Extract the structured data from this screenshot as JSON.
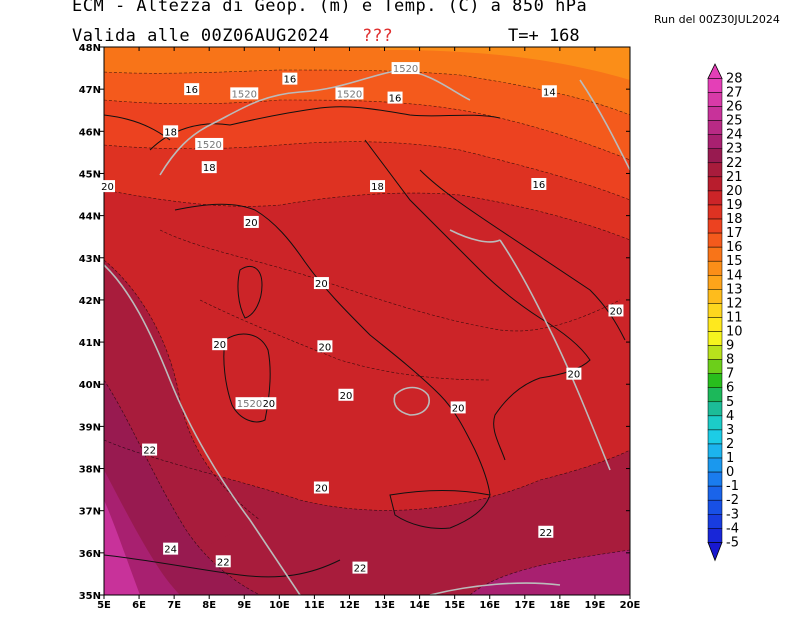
{
  "header": {
    "title": "ECM - Altezza di Geop. (m) e Temp. (C) a 850 hPa",
    "valid": "Valida alle 00Z06AUG2024",
    "flag": "???",
    "forecast_step": "T=+ 168",
    "run": "Run del 00Z30JUL2024"
  },
  "map": {
    "lon_ticks": [
      "5E",
      "6E",
      "7E",
      "8E",
      "9E",
      "10E",
      "11E",
      "12E",
      "13E",
      "14E",
      "15E",
      "16E",
      "17E",
      "18E",
      "19E",
      "20E"
    ],
    "lat_ticks": [
      "48N",
      "47N",
      "46N",
      "45N",
      "44N",
      "43N",
      "42N",
      "41N",
      "40N",
      "39N",
      "38N",
      "37N",
      "36N",
      "35N"
    ],
    "temp_labels": [
      {
        "text": "16",
        "lon": 7.5,
        "lat": 47.0
      },
      {
        "text": "16",
        "lon": 10.3,
        "lat": 47.25
      },
      {
        "text": "16",
        "lon": 13.3,
        "lat": 46.8
      },
      {
        "text": "14",
        "lon": 17.7,
        "lat": 46.95
      },
      {
        "text": "18",
        "lon": 6.9,
        "lat": 46.0
      },
      {
        "text": "18",
        "lon": 8.0,
        "lat": 45.15
      },
      {
        "text": "18",
        "lon": 12.8,
        "lat": 44.7
      },
      {
        "text": "16",
        "lon": 17.4,
        "lat": 44.75
      },
      {
        "text": "20",
        "lon": 5.1,
        "lat": 44.7
      },
      {
        "text": "20",
        "lon": 9.2,
        "lat": 43.85
      },
      {
        "text": "20",
        "lon": 11.2,
        "lat": 42.4
      },
      {
        "text": "20",
        "lon": 19.6,
        "lat": 41.75
      },
      {
        "text": "20",
        "lon": 8.3,
        "lat": 40.95
      },
      {
        "text": "20",
        "lon": 11.3,
        "lat": 40.9
      },
      {
        "text": "20",
        "lon": 18.4,
        "lat": 40.25
      },
      {
        "text": "20",
        "lon": 11.9,
        "lat": 39.75
      },
      {
        "text": "20",
        "lon": 9.7,
        "lat": 39.55
      },
      {
        "text": "20",
        "lon": 15.1,
        "lat": 39.45
      },
      {
        "text": "22",
        "lon": 6.3,
        "lat": 38.45
      },
      {
        "text": "20",
        "lon": 11.2,
        "lat": 37.55
      },
      {
        "text": "22",
        "lon": 17.6,
        "lat": 36.5
      },
      {
        "text": "24",
        "lon": 6.9,
        "lat": 36.1
      },
      {
        "text": "22",
        "lon": 8.4,
        "lat": 35.8
      },
      {
        "text": "22",
        "lon": 12.3,
        "lat": 35.65
      }
    ],
    "geop_labels": [
      {
        "text": "1520",
        "lon": 13.6,
        "lat": 47.5
      },
      {
        "text": "1520",
        "lon": 9.0,
        "lat": 46.9
      },
      {
        "text": "1520",
        "lon": 12.0,
        "lat": 46.9
      },
      {
        "text": "1520",
        "lon": 8.0,
        "lat": 45.7
      },
      {
        "text": "1520",
        "lon": 9.15,
        "lat": 39.55
      }
    ]
  },
  "colorbar": {
    "labels": [
      "28",
      "27",
      "26",
      "25",
      "24",
      "23",
      "22",
      "21",
      "20",
      "19",
      "18",
      "17",
      "16",
      "15",
      "14",
      "13",
      "12",
      "11",
      "10",
      "9",
      "8",
      "7",
      "6",
      "5",
      "4",
      "3",
      "2",
      "1",
      "0",
      "-1",
      "-2",
      "-3",
      "-4",
      "-5"
    ],
    "colors": [
      "#e43fb7",
      "#d83aa8",
      "#c8329a",
      "#b82a85",
      "#a82070",
      "#981a50",
      "#a81c3c",
      "#b81d2d",
      "#cc2428",
      "#de3222",
      "#ec4220",
      "#f45a1c",
      "#f87418",
      "#fb8e18",
      "#fda41a",
      "#febc1c",
      "#fed61e",
      "#fee81e",
      "#f6f41e",
      "#b8e11c",
      "#6ccf1a",
      "#28be1c",
      "#1cb85a",
      "#1cbc98",
      "#1cccc8",
      "#1ccce6",
      "#1cb4ee",
      "#1a98ee",
      "#1a7cee",
      "#1a64ea",
      "#1850e6",
      "#183ce0",
      "#1826d8"
    ]
  }
}
